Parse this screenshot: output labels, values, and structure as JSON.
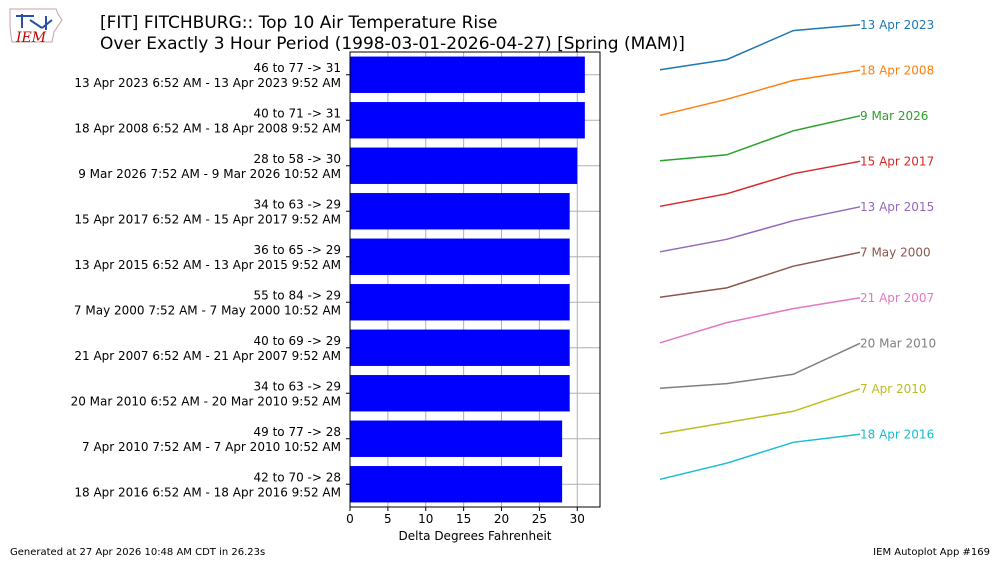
{
  "title_line1": "[FIT] FITCHBURG:: Top 10 Air Temperature Rise",
  "title_line2": "Over Exactly 3 Hour Period (1998-03-01-2026-04-27) [Spring (MAM)]",
  "logo_text": "IEM",
  "footer_left": "Generated at 27 Apr 2026 10:48 AM CDT in 26.23s",
  "footer_right": "IEM Autoplot App #169",
  "colors": {
    "bar": "#0000ff",
    "series": [
      "#1f77b4",
      "#ff7f0e",
      "#2ca02c",
      "#d62728",
      "#9467bd",
      "#8c564b",
      "#e377c2",
      "#7f7f7f",
      "#bcbd22",
      "#17becf"
    ]
  },
  "chart_data": {
    "type": "bar",
    "orientation": "horizontal",
    "xlabel": "Delta Degrees Fahrenheit",
    "xlim": [
      0,
      33
    ],
    "xticks": [
      0,
      5,
      10,
      15,
      20,
      25,
      30
    ],
    "grid": true,
    "categories": [
      {
        "range": "46 to 77 -> 31",
        "period": "13 Apr 2023 6:52 AM - 13 Apr 2023 9:52 AM",
        "label": "13 Apr 2023"
      },
      {
        "range": "40 to 71 -> 31",
        "period": "18 Apr 2008 6:52 AM - 18 Apr 2008 9:52 AM",
        "label": "18 Apr 2008"
      },
      {
        "range": "28 to 58 -> 30",
        "period": "9 Mar 2026 7:52 AM - 9 Mar 2026 10:52 AM",
        "label": "9 Mar 2026"
      },
      {
        "range": "34 to 63 -> 29",
        "period": "15 Apr 2017 6:52 AM - 15 Apr 2017 9:52 AM",
        "label": "15 Apr 2017"
      },
      {
        "range": "36 to 65 -> 29",
        "period": "13 Apr 2015 6:52 AM - 13 Apr 2015 9:52 AM",
        "label": "13 Apr 2015"
      },
      {
        "range": "55 to 84 -> 29",
        "period": "7 May 2000 7:52 AM - 7 May 2000 10:52 AM",
        "label": "7 May 2000"
      },
      {
        "range": "40 to 69 -> 29",
        "period": "21 Apr 2007 6:52 AM - 21 Apr 2007 9:52 AM",
        "label": "21 Apr 2007"
      },
      {
        "range": "34 to 63 -> 29",
        "period": "20 Mar 2010 6:52 AM - 20 Mar 2010 9:52 AM",
        "label": "20 Mar 2010"
      },
      {
        "range": "49 to 77 -> 28",
        "period": "7 Apr 2010 7:52 AM - 7 Apr 2010 10:52 AM",
        "label": "7 Apr 2010"
      },
      {
        "range": "42 to 70 -> 28",
        "period": "18 Apr 2016 6:52 AM - 18 Apr 2016 9:52 AM",
        "label": "18 Apr 2016"
      }
    ],
    "values": [
      31,
      31,
      30,
      29,
      29,
      29,
      29,
      29,
      28,
      28
    ],
    "traces": [
      [
        46,
        53,
        73,
        77
      ],
      [
        40,
        51,
        64,
        71
      ],
      [
        28,
        32,
        48,
        58
      ],
      [
        34,
        42,
        55,
        63
      ],
      [
        36,
        44,
        56,
        65
      ],
      [
        55,
        61,
        75,
        84
      ],
      [
        40,
        53,
        62,
        69
      ],
      [
        34,
        37,
        43,
        63
      ],
      [
        49,
        56,
        63,
        77
      ],
      [
        42,
        52,
        65,
        70
      ]
    ]
  }
}
